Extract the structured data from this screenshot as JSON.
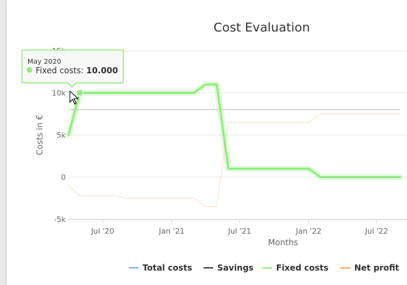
{
  "colors": {
    "total_costs": "#7cb5ec",
    "savings": "#434348",
    "fixed_costs": "#90ed7d",
    "net_profit": "#f7a35c",
    "gridline": "#e6e6e6",
    "background": "#ffffff"
  },
  "tooltip": {
    "header": "May 2020",
    "series_label": "Fixed costs: ",
    "value": "10.000"
  },
  "chart_data": {
    "type": "line",
    "title": "Cost Evaluation",
    "xlabel": "Months",
    "ylabel": "Costs in €",
    "ylim": [
      -5000,
      15000
    ],
    "y_ticks": [
      -5000,
      0,
      5000,
      10000,
      15000
    ],
    "y_tick_labels": [
      "-5k",
      "0",
      "5k",
      "10k",
      "15k"
    ],
    "x_ticks": [
      "2020-07-01",
      "2021-01-01",
      "2021-07-01",
      "2022-01-01",
      "2022-07-01"
    ],
    "x_tick_labels": [
      "Jul '20",
      "Jan '21",
      "Jul '21",
      "Jan '22",
      "Jul '22"
    ],
    "grid": true,
    "legend_position": "bottom",
    "highlighted_series": "Fixed costs",
    "x": [
      "2020-04-01",
      "2020-05-01",
      "2020-06-01",
      "2020-07-01",
      "2020-08-01",
      "2020-09-01",
      "2020-10-01",
      "2020-11-01",
      "2020-12-01",
      "2021-01-01",
      "2021-02-01",
      "2021-03-01",
      "2021-04-01",
      "2021-05-01",
      "2021-06-01",
      "2021-07-01",
      "2021-08-01",
      "2021-09-01",
      "2021-10-01",
      "2021-11-01",
      "2021-12-01",
      "2022-01-01",
      "2022-02-01",
      "2022-03-01",
      "2022-04-01",
      "2022-05-01",
      "2022-06-01",
      "2022-07-01",
      "2022-08-01",
      "2022-09-01"
    ],
    "series": [
      {
        "name": "Total costs",
        "values": [
          5000,
          10000,
          10000,
          10000,
          10000,
          10000,
          10000,
          10000,
          10000,
          10000,
          10000,
          10000,
          11000,
          11000,
          1000,
          1000,
          1000,
          1000,
          1000,
          1000,
          1000,
          1000,
          0,
          0,
          0,
          0,
          0,
          0,
          0,
          0
        ]
      },
      {
        "name": "Savings",
        "values": [
          8000,
          8000,
          8000,
          8000,
          8000,
          8000,
          8000,
          8000,
          8000,
          8000,
          8000,
          8000,
          8000,
          8000,
          8000,
          8000,
          8000,
          8000,
          8000,
          8000,
          8000,
          8000,
          8000,
          8000,
          8000,
          8000,
          8000,
          8000,
          8000,
          8000
        ]
      },
      {
        "name": "Fixed costs",
        "values": [
          5000,
          10000,
          10000,
          10000,
          10000,
          10000,
          10000,
          10000,
          10000,
          10000,
          10000,
          10000,
          11000,
          11000,
          1000,
          1000,
          1000,
          1000,
          1000,
          1000,
          1000,
          1000,
          0,
          0,
          0,
          0,
          0,
          0,
          0,
          0
        ]
      },
      {
        "name": "Net profit",
        "values": [
          -1000,
          -2200,
          -2200,
          -2200,
          -2200,
          -2500,
          -2500,
          -2500,
          -2500,
          -2500,
          -2500,
          -2500,
          -3500,
          -3500,
          6500,
          6500,
          6500,
          6500,
          6500,
          6500,
          6500,
          6500,
          7500,
          7500,
          7500,
          7500,
          7500,
          7500,
          7500,
          7500
        ]
      }
    ]
  }
}
